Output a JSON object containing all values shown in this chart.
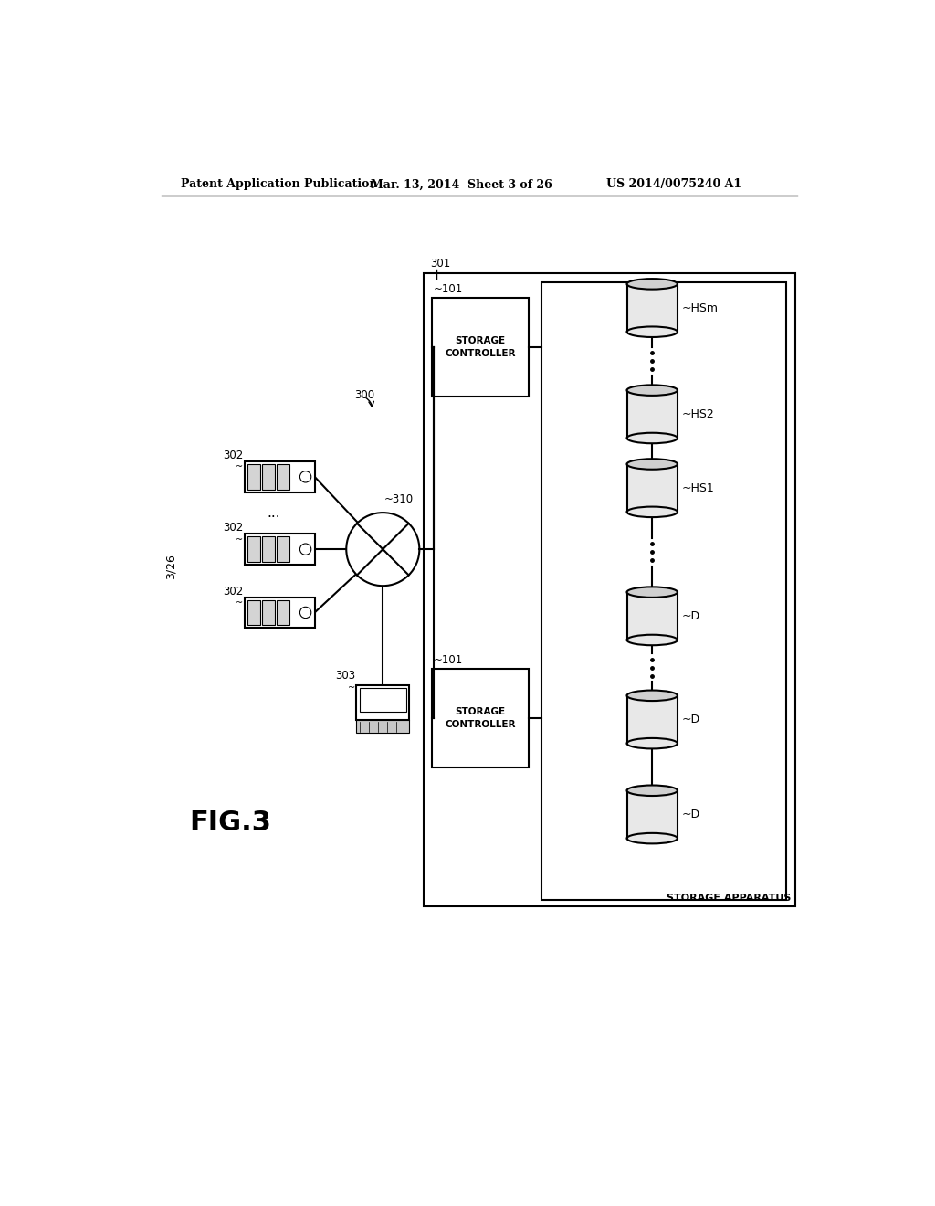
{
  "bg_color": "#ffffff",
  "header_left": "Patent Application Publication",
  "header_mid": "Mar. 13, 2014  Sheet 3 of 26",
  "header_right": "US 2014/0075240 A1",
  "fig_label": "FIG.3",
  "page_label": "3/26",
  "lbl_300": "300",
  "lbl_301": "301",
  "lbl_302": "302",
  "lbl_303": "303",
  "lbl_310": "310",
  "lbl_101": "101",
  "lbl_HSm": "HSm",
  "lbl_HS2": "HS2",
  "lbl_HS1": "HS1",
  "lbl_D": "D",
  "lbl_storage_apparatus": "STORAGE APPARATUS",
  "lbl_sc": "STORAGE\nCONTROLLER",
  "black": "#000000",
  "white": "#ffffff",
  "light_gray": "#e8e8e8",
  "mid_gray": "#d0d0d0"
}
